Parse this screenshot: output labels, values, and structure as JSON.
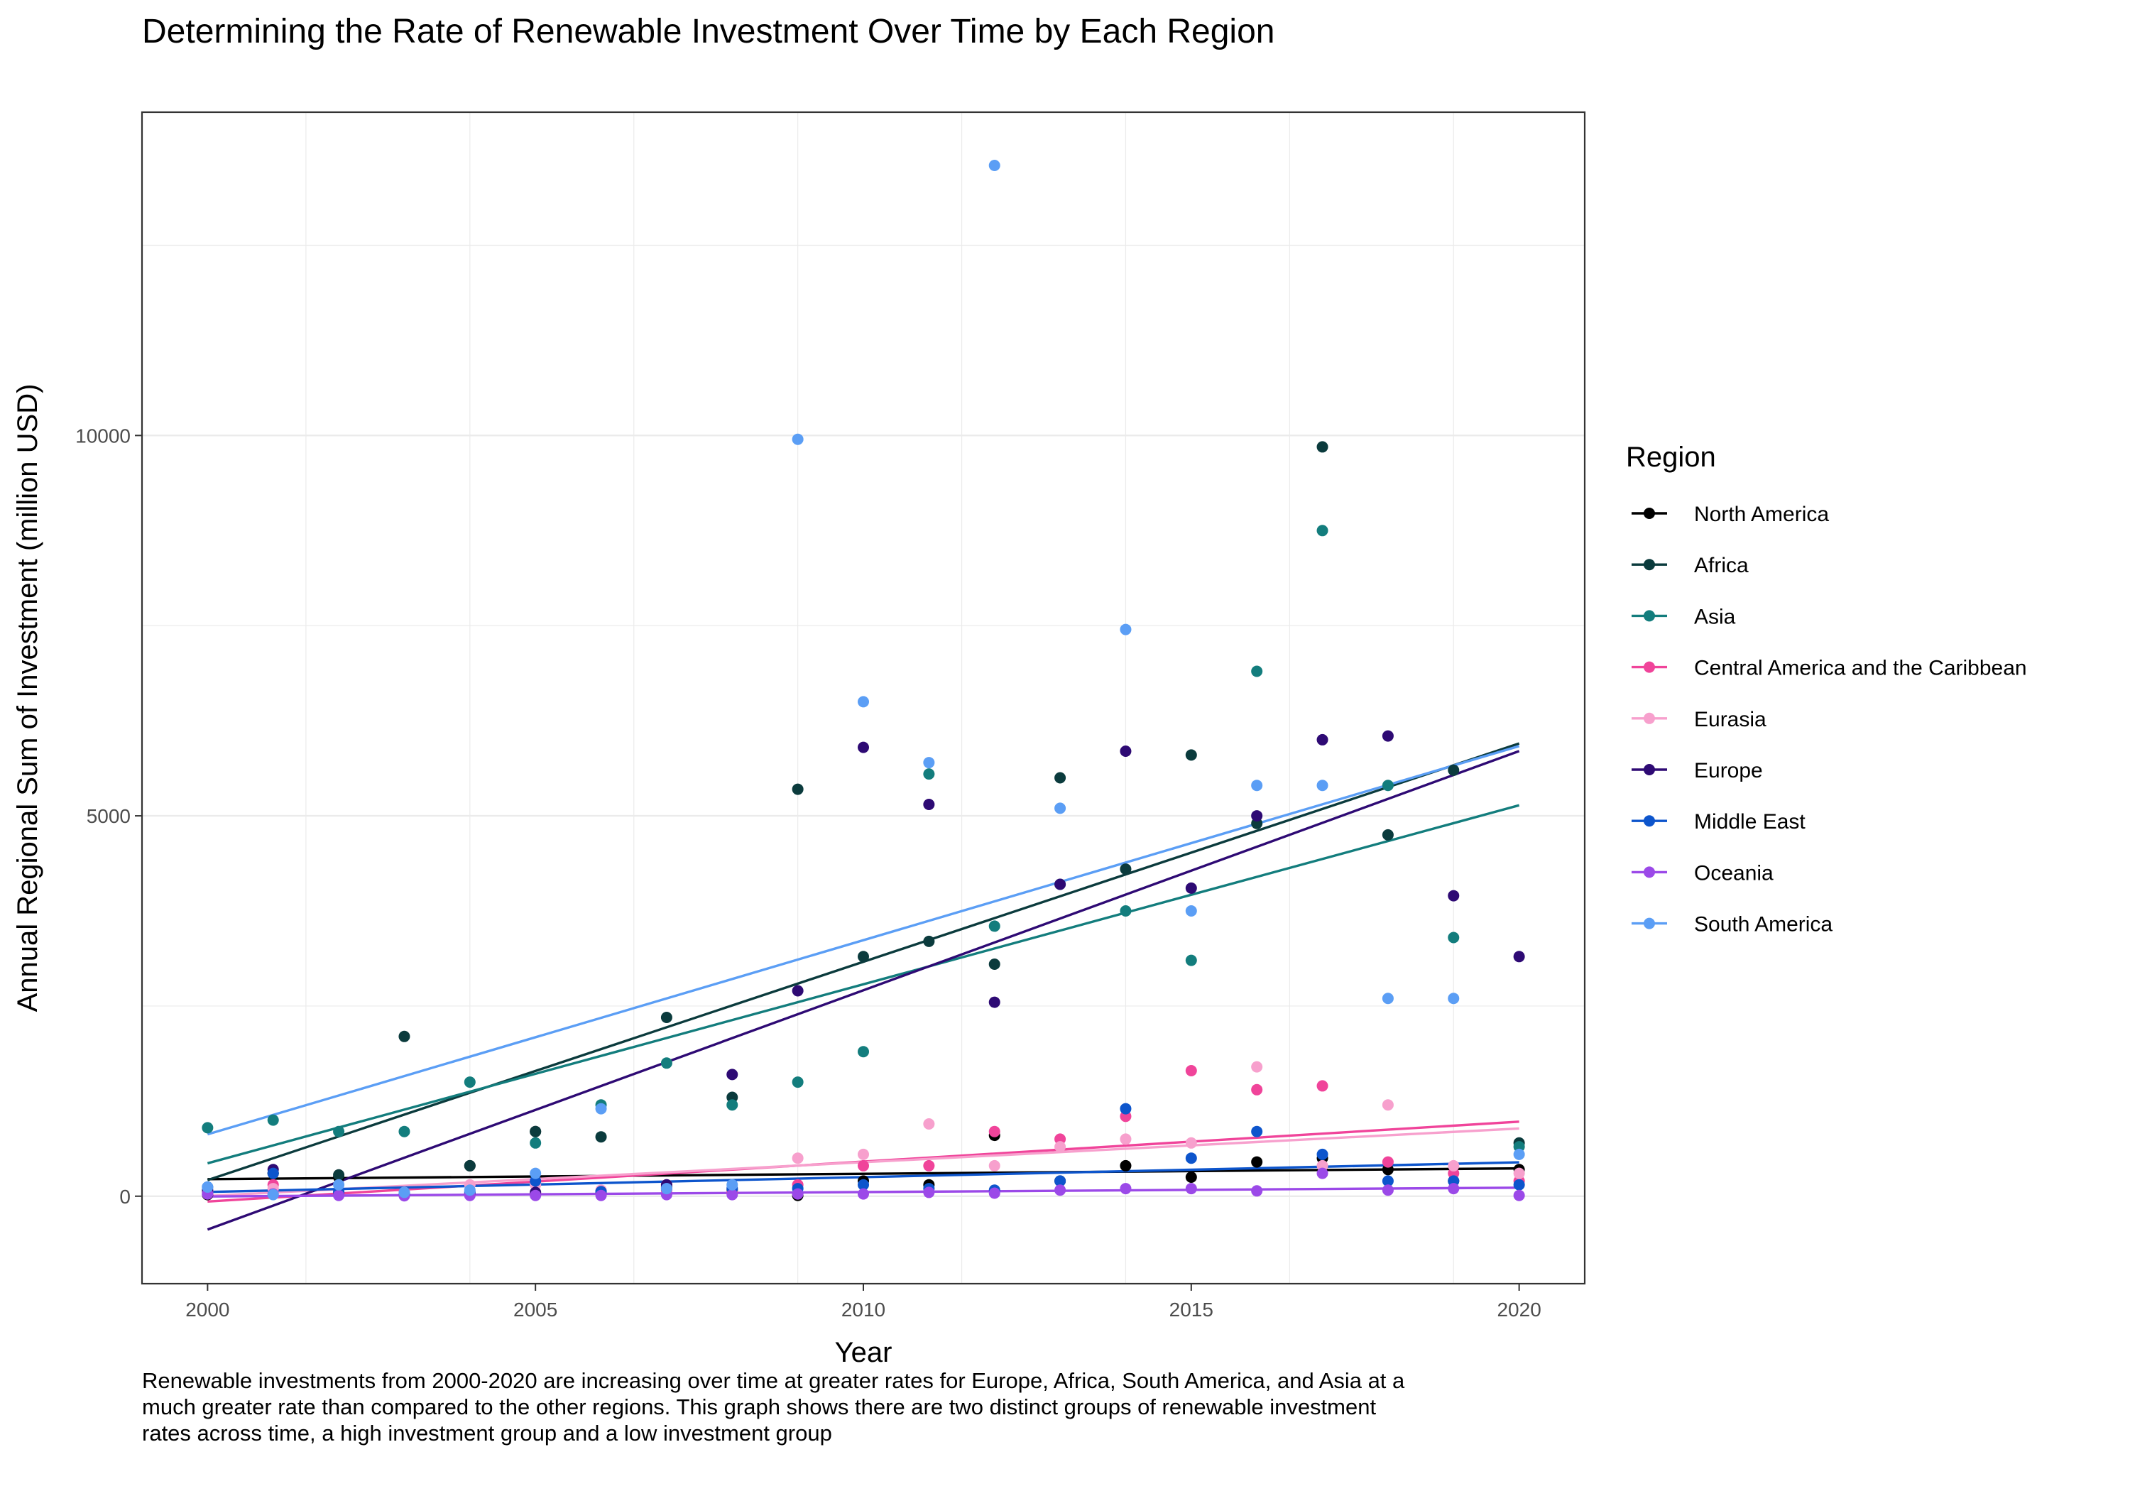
{
  "chart_data": {
    "type": "scatter",
    "title": "Determining the Rate of Renewable Investment Over Time by Each Region",
    "xlabel": "Year",
    "ylabel": "Annual Regional Sum of Investment (million USD)",
    "xlim": [
      1999,
      2021
    ],
    "ylim": [
      -1150,
      14250
    ],
    "x_ticks": [
      2000,
      2005,
      2010,
      2015,
      2020
    ],
    "y_ticks": [
      0,
      5000,
      10000
    ],
    "grid": true,
    "legend_title": "Region",
    "legend_position": "right",
    "trend_lines": "linear fit per region",
    "series": [
      {
        "name": "North America",
        "color": "#000000",
        "points": [
          [
            2000,
            20
          ],
          [
            2001,
            300
          ],
          [
            2002,
            250
          ],
          [
            2004,
            400
          ],
          [
            2005,
            850
          ],
          [
            2006,
            60
          ],
          [
            2007,
            120
          ],
          [
            2008,
            80
          ],
          [
            2009,
            10
          ],
          [
            2010,
            200
          ],
          [
            2011,
            150
          ],
          [
            2012,
            800
          ],
          [
            2013,
            200
          ],
          [
            2014,
            400
          ],
          [
            2015,
            250
          ],
          [
            2016,
            450
          ],
          [
            2017,
            500
          ],
          [
            2018,
            350
          ],
          [
            2019,
            200
          ],
          [
            2020,
            350
          ]
        ]
      },
      {
        "name": "Africa",
        "color": "#0b3b3d",
        "points": [
          [
            2000,
            50
          ],
          [
            2001,
            300
          ],
          [
            2002,
            280
          ],
          [
            2003,
            2100
          ],
          [
            2004,
            400
          ],
          [
            2005,
            850
          ],
          [
            2006,
            780
          ],
          [
            2007,
            2350
          ],
          [
            2008,
            1300
          ],
          [
            2009,
            5350
          ],
          [
            2010,
            3150
          ],
          [
            2011,
            3350
          ],
          [
            2012,
            3050
          ],
          [
            2013,
            5500
          ],
          [
            2014,
            4300
          ],
          [
            2015,
            5800
          ],
          [
            2016,
            4900
          ],
          [
            2017,
            9850
          ],
          [
            2018,
            4750
          ],
          [
            2019,
            5600
          ],
          [
            2020,
            700
          ]
        ]
      },
      {
        "name": "Asia",
        "color": "#137d7d",
        "points": [
          [
            2000,
            900
          ],
          [
            2001,
            1000
          ],
          [
            2002,
            850
          ],
          [
            2003,
            850
          ],
          [
            2004,
            1500
          ],
          [
            2005,
            700
          ],
          [
            2006,
            1200
          ],
          [
            2007,
            1750
          ],
          [
            2008,
            1200
          ],
          [
            2009,
            1500
          ],
          [
            2010,
            1900
          ],
          [
            2011,
            5550
          ],
          [
            2012,
            3550
          ],
          [
            2013,
            4100
          ],
          [
            2014,
            3750
          ],
          [
            2015,
            3100
          ],
          [
            2016,
            6900
          ],
          [
            2017,
            8750
          ],
          [
            2018,
            5400
          ],
          [
            2019,
            3400
          ],
          [
            2020,
            650
          ]
        ]
      },
      {
        "name": "Central America and the Caribbean",
        "color": "#f0449a",
        "points": [
          [
            2000,
            30
          ],
          [
            2001,
            150
          ],
          [
            2002,
            20
          ],
          [
            2003,
            30
          ],
          [
            2004,
            60
          ],
          [
            2005,
            40
          ],
          [
            2006,
            40
          ],
          [
            2007,
            80
          ],
          [
            2008,
            50
          ],
          [
            2009,
            150
          ],
          [
            2010,
            400
          ],
          [
            2011,
            400
          ],
          [
            2012,
            850
          ],
          [
            2013,
            750
          ],
          [
            2014,
            1050
          ],
          [
            2015,
            1650
          ],
          [
            2016,
            1400
          ],
          [
            2017,
            1450
          ],
          [
            2018,
            450
          ],
          [
            2019,
            300
          ],
          [
            2020,
            200
          ]
        ]
      },
      {
        "name": "Eurasia",
        "color": "#f7a0cd",
        "points": [
          [
            2000,
            60
          ],
          [
            2001,
            100
          ],
          [
            2002,
            40
          ],
          [
            2003,
            50
          ],
          [
            2004,
            150
          ],
          [
            2005,
            150
          ],
          [
            2006,
            80
          ],
          [
            2007,
            150
          ],
          [
            2008,
            100
          ],
          [
            2009,
            500
          ],
          [
            2010,
            550
          ],
          [
            2011,
            950
          ],
          [
            2012,
            400
          ],
          [
            2013,
            650
          ],
          [
            2014,
            750
          ],
          [
            2015,
            700
          ],
          [
            2016,
            1700
          ],
          [
            2017,
            400
          ],
          [
            2018,
            1200
          ],
          [
            2019,
            400
          ],
          [
            2020,
            300
          ]
        ]
      },
      {
        "name": "Europe",
        "color": "#2e0a74",
        "points": [
          [
            2000,
            80
          ],
          [
            2001,
            350
          ],
          [
            2002,
            40
          ],
          [
            2003,
            30
          ],
          [
            2004,
            30
          ],
          [
            2005,
            50
          ],
          [
            2006,
            60
          ],
          [
            2007,
            150
          ],
          [
            2008,
            1600
          ],
          [
            2009,
            2700
          ],
          [
            2010,
            5900
          ],
          [
            2011,
            5150
          ],
          [
            2012,
            2550
          ],
          [
            2013,
            4100
          ],
          [
            2014,
            5850
          ],
          [
            2015,
            4050
          ],
          [
            2016,
            5000
          ],
          [
            2017,
            6000
          ],
          [
            2018,
            6050
          ],
          [
            2019,
            3950
          ],
          [
            2020,
            3150
          ]
        ]
      },
      {
        "name": "Middle East",
        "color": "#0d55cc",
        "points": [
          [
            2000,
            120
          ],
          [
            2001,
            300
          ],
          [
            2002,
            60
          ],
          [
            2003,
            40
          ],
          [
            2004,
            50
          ],
          [
            2005,
            200
          ],
          [
            2006,
            60
          ],
          [
            2007,
            100
          ],
          [
            2008,
            100
          ],
          [
            2009,
            100
          ],
          [
            2010,
            150
          ],
          [
            2011,
            100
          ],
          [
            2012,
            80
          ],
          [
            2013,
            200
          ],
          [
            2014,
            1150
          ],
          [
            2015,
            500
          ],
          [
            2016,
            850
          ],
          [
            2017,
            550
          ],
          [
            2018,
            200
          ],
          [
            2019,
            200
          ],
          [
            2020,
            150
          ]
        ]
      },
      {
        "name": "Oceania",
        "color": "#9b49e8",
        "points": [
          [
            2000,
            30
          ],
          [
            2001,
            30
          ],
          [
            2002,
            10
          ],
          [
            2003,
            5
          ],
          [
            2004,
            10
          ],
          [
            2005,
            10
          ],
          [
            2006,
            10
          ],
          [
            2007,
            20
          ],
          [
            2008,
            20
          ],
          [
            2009,
            30
          ],
          [
            2010,
            30
          ],
          [
            2011,
            50
          ],
          [
            2012,
            40
          ],
          [
            2013,
            80
          ],
          [
            2014,
            100
          ],
          [
            2015,
            100
          ],
          [
            2016,
            70
          ],
          [
            2017,
            300
          ],
          [
            2018,
            80
          ],
          [
            2019,
            100
          ],
          [
            2020,
            10
          ]
        ]
      },
      {
        "name": "South America",
        "color": "#5b9ef5",
        "points": [
          [
            2000,
            120
          ],
          [
            2001,
            20
          ],
          [
            2002,
            150
          ],
          [
            2003,
            50
          ],
          [
            2004,
            80
          ],
          [
            2005,
            300
          ],
          [
            2006,
            1150
          ],
          [
            2007,
            100
          ],
          [
            2008,
            150
          ],
          [
            2009,
            9950
          ],
          [
            2010,
            6500
          ],
          [
            2011,
            5700
          ],
          [
            2012,
            13550
          ],
          [
            2013,
            5100
          ],
          [
            2014,
            7450
          ],
          [
            2015,
            3750
          ],
          [
            2016,
            5400
          ],
          [
            2017,
            5400
          ],
          [
            2018,
            2600
          ],
          [
            2019,
            2600
          ],
          [
            2020,
            550
          ]
        ]
      }
    ]
  },
  "caption": "Renewable investments from 2000-2020 are increasing over time at greater rates for Europe, Africa, South America, and Asia at a much greater rate than compared to the other regions. This graph shows there are two distinct groups of renewable investment rates across time, a high investment group and a low investment group"
}
